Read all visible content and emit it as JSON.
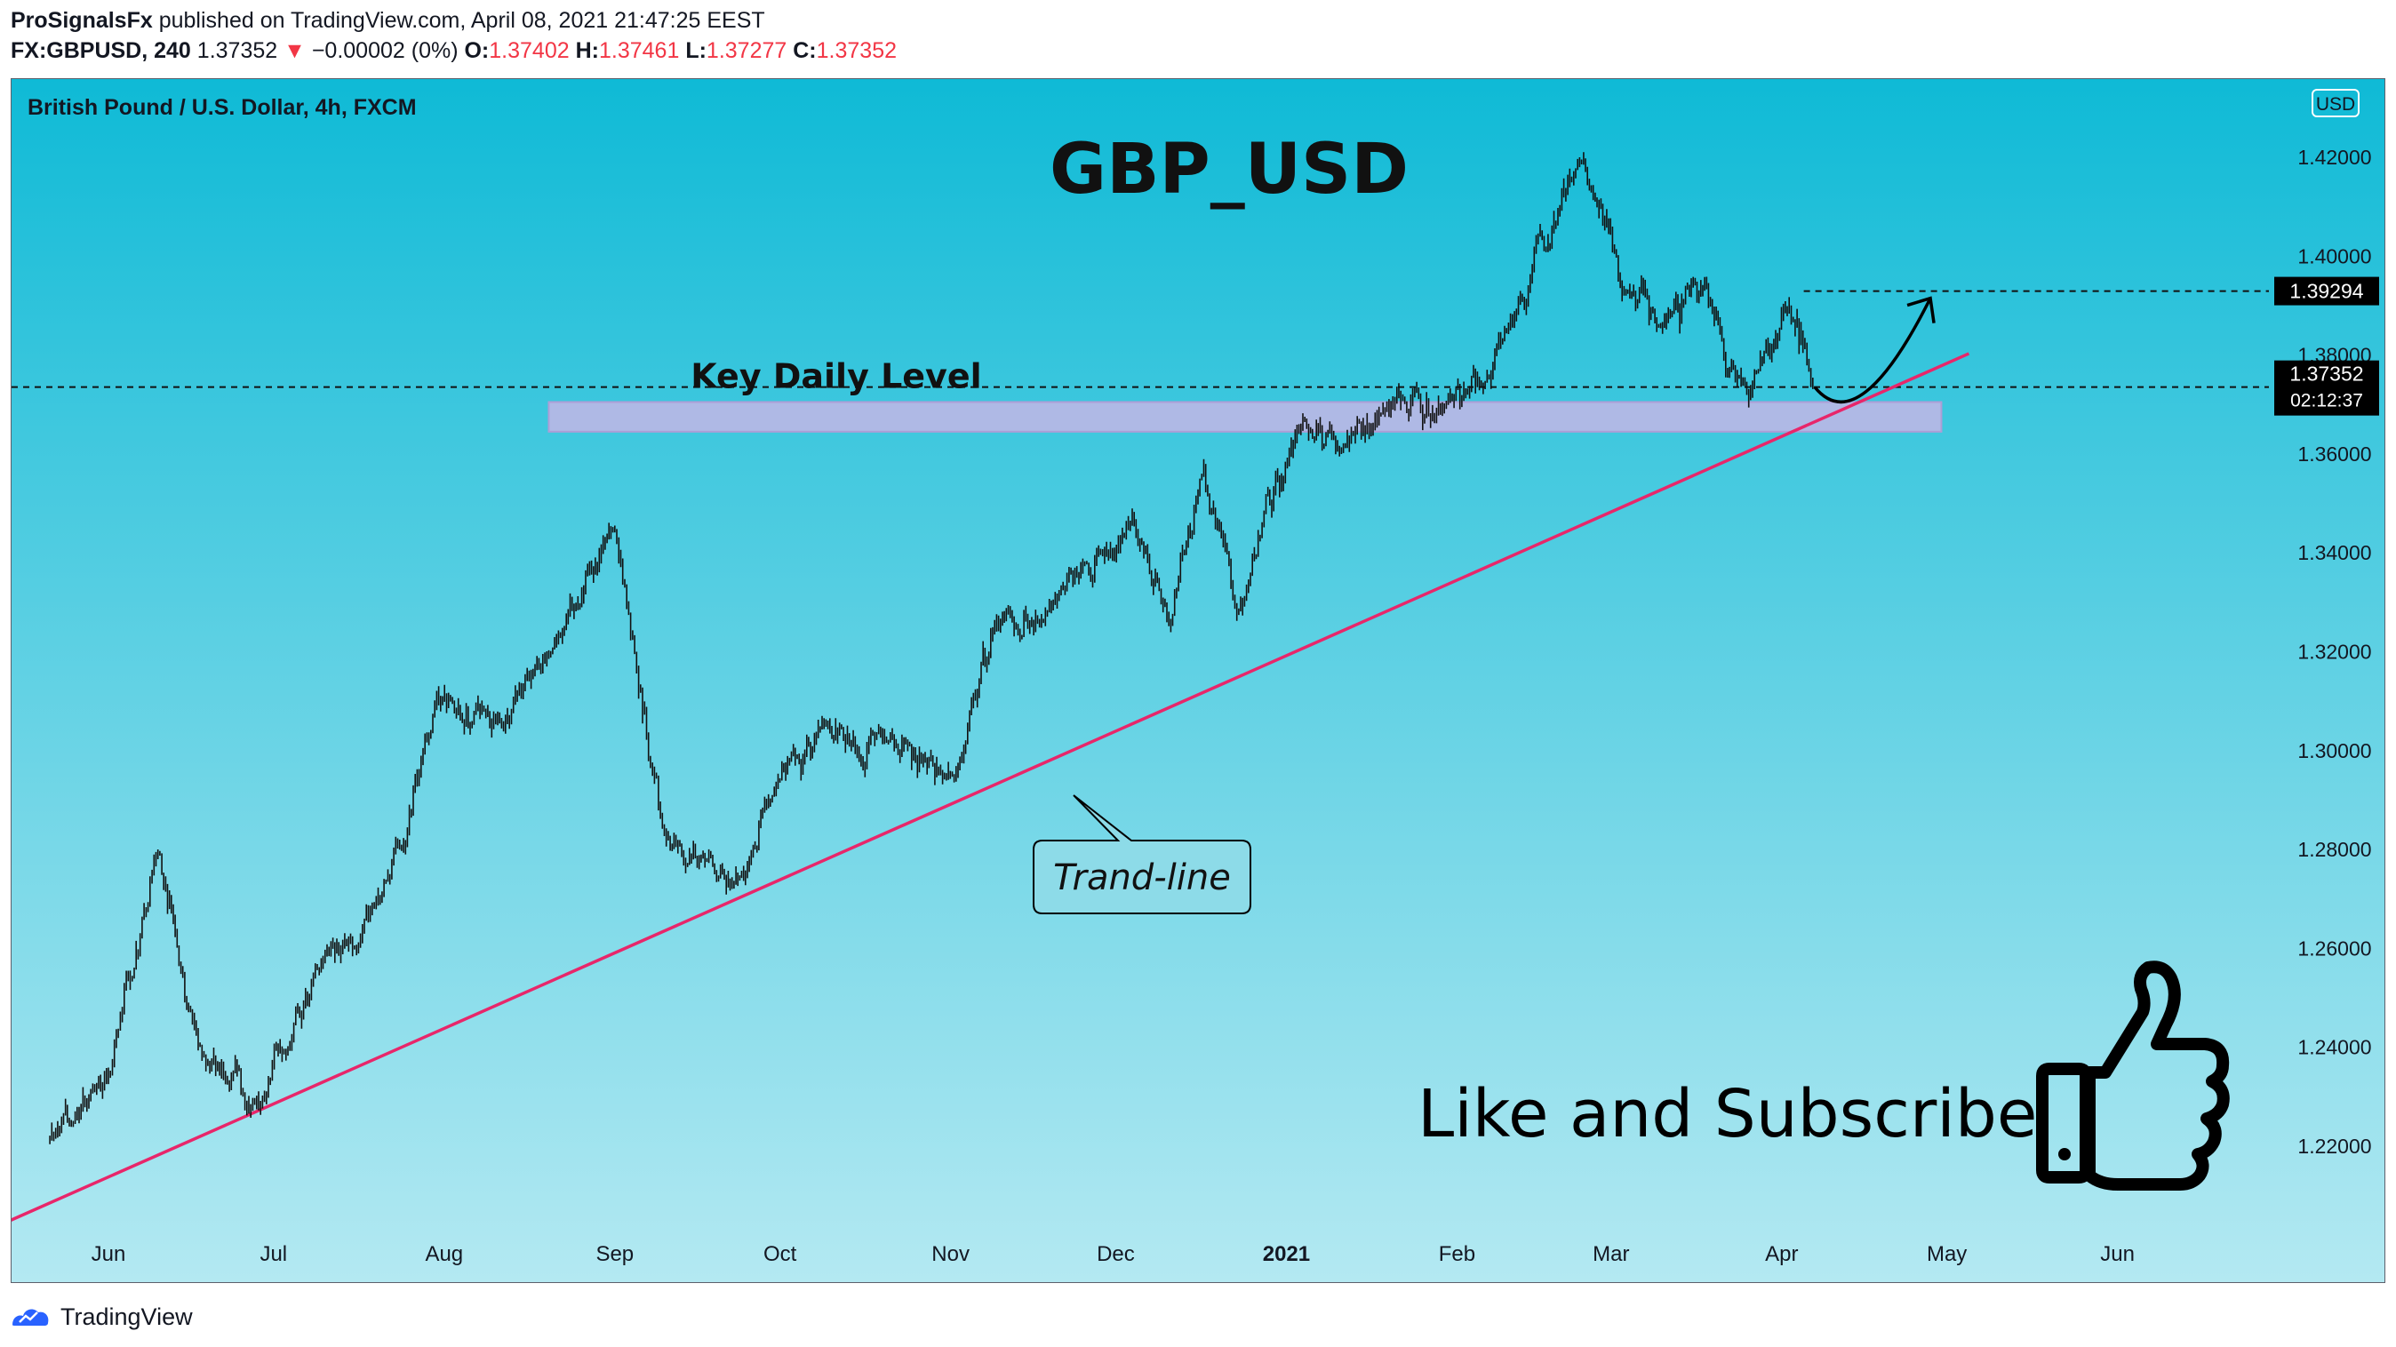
{
  "header": {
    "line1": {
      "author": "ProSignalsFx",
      "published": "published on TradingView.com, April 08, 2021 21:47:25 EEST"
    },
    "line2": {
      "symbol": "FX:GBPUSD, 240",
      "last": "1.37352",
      "change": "−0.00002 (0%)",
      "o_label": "O:",
      "o_value": "1.37402",
      "h_label": "H:",
      "h_value": "1.37461",
      "l_label": "L:",
      "l_value": "1.37277",
      "c_label": "C:",
      "c_value": "1.37352"
    }
  },
  "footer": {
    "brand": "TradingView"
  },
  "colors": {
    "bg_top": "#0fbad6",
    "bg_bottom": "#b4e9f2",
    "trendline": "#e8266a",
    "zone_fill": "#c3b6e6",
    "zone_stroke": "#ad9ed6",
    "candles": "#111111",
    "price_down": "#f23645"
  },
  "chart_data": {
    "type": "line",
    "instrument": "British Pound / U.S. Dollar, 4h, FXCM",
    "currency_badge": "USD",
    "title": "GBP_USD",
    "y_ticks": [
      "1.42000",
      "1.40000",
      "1.38000",
      "1.36000",
      "1.34000",
      "1.32000",
      "1.30000",
      "1.28000",
      "1.26000",
      "1.24000",
      "1.22000"
    ],
    "ylim": [
      1.207,
      1.43
    ],
    "x_ticks": [
      "Jun",
      "Jul",
      "Aug",
      "Sep",
      "Oct",
      "Nov",
      "Dec",
      "2021",
      "Feb",
      "Mar",
      "Apr",
      "May",
      "Jun"
    ],
    "x_ticks_bold": [
      "2021"
    ],
    "series": [
      {
        "x": [
          "2020-05-21",
          "2020-06-01",
          "2020-06-10",
          "2020-06-18",
          "2020-06-29",
          "2020-07-10",
          "2020-07-20",
          "2020-07-31",
          "2020-08-10",
          "2020-08-20",
          "2020-09-01",
          "2020-09-10",
          "2020-09-23",
          "2020-10-01",
          "2020-10-09",
          "2020-10-20",
          "2020-11-02",
          "2020-11-09",
          "2020-11-20",
          "2020-12-04",
          "2020-12-11",
          "2020-12-17",
          "2020-12-23",
          "2021-01-04",
          "2021-01-11",
          "2021-01-20",
          "2021-01-29",
          "2021-02-10",
          "2021-02-24",
          "2021-03-03",
          "2021-03-10",
          "2021-03-18",
          "2021-03-26",
          "2021-04-02",
          "2021-04-07"
        ],
        "values": [
          1.221,
          1.234,
          1.28,
          1.238,
          1.228,
          1.258,
          1.27,
          1.31,
          1.305,
          1.32,
          1.345,
          1.283,
          1.274,
          1.295,
          1.306,
          1.303,
          1.295,
          1.325,
          1.33,
          1.347,
          1.326,
          1.357,
          1.328,
          1.367,
          1.36,
          1.37,
          1.369,
          1.385,
          1.42,
          1.393,
          1.385,
          1.395,
          1.372,
          1.39,
          1.373
        ]
      }
    ],
    "current_price": {
      "value": 1.37352,
      "label": "1.37352",
      "countdown": "02:12:37"
    },
    "target": {
      "value": 1.39294,
      "label": "1.39294"
    },
    "key_level": {
      "label": "Key Daily Level",
      "low": 1.3645,
      "high": 1.3705
    },
    "trendline": {
      "label": "Trand-line",
      "points": [
        {
          "x": "2020-05-14",
          "y": 1.2049
        },
        {
          "x": "2021-05-05",
          "y": 1.3803
        }
      ]
    },
    "call_to_action": "Like and Subscribe",
    "grid": false,
    "legend": "none"
  }
}
